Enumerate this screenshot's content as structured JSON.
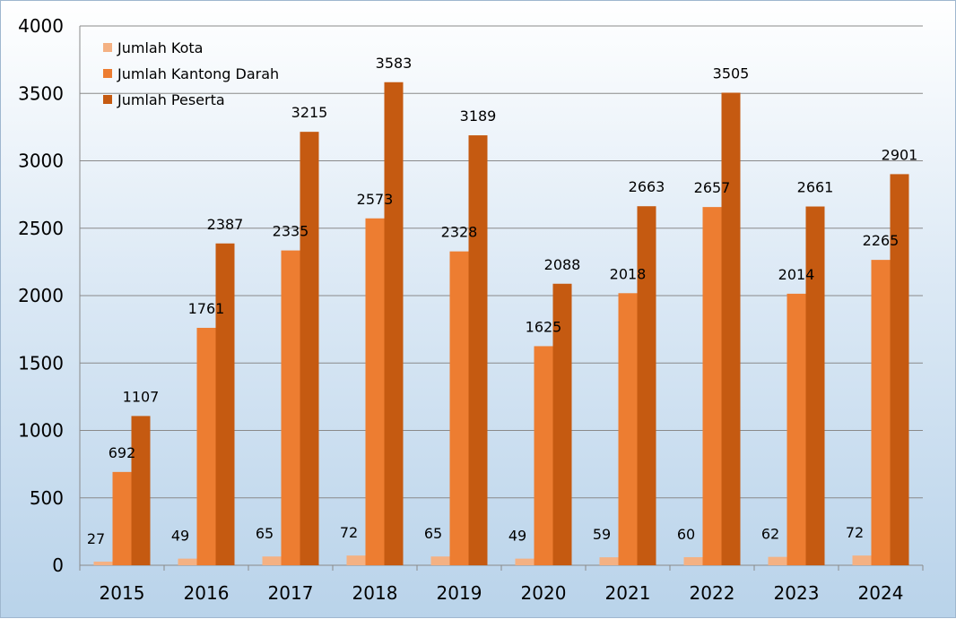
{
  "chart_data": {
    "type": "bar",
    "title": "",
    "xlabel": "",
    "ylabel": "",
    "ylim": [
      0,
      4000
    ],
    "yticks": [
      0,
      500,
      1000,
      1500,
      2000,
      2500,
      3000,
      3500,
      4000
    ],
    "grid": true,
    "legend_position": "top-left",
    "categories": [
      "2015",
      "2016",
      "2017",
      "2018",
      "2019",
      "2020",
      "2021",
      "2022",
      "2023",
      "2024"
    ],
    "series": [
      {
        "name": "Jumlah Kota",
        "color": "#f4b183",
        "values": [
          27,
          49,
          65,
          72,
          65,
          49,
          59,
          60,
          62,
          72
        ]
      },
      {
        "name": "Jumlah Kantong Darah",
        "color": "#ed7d31",
        "values": [
          692,
          1761,
          2335,
          2573,
          2328,
          1625,
          2018,
          2657,
          2014,
          2265
        ]
      },
      {
        "name": "Jumlah Peserta",
        "color": "#c55a11",
        "values": [
          1107,
          2387,
          3215,
          3583,
          3189,
          2088,
          2663,
          3505,
          2661,
          2901
        ]
      }
    ]
  }
}
